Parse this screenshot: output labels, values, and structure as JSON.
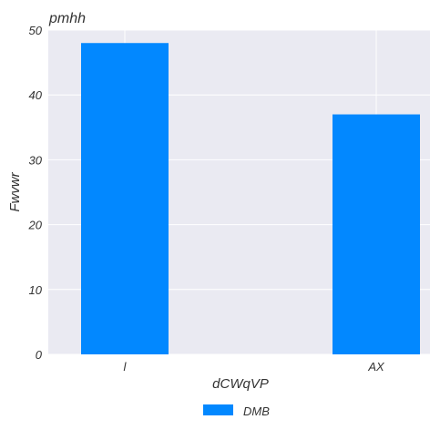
{
  "chart_data": {
    "type": "bar",
    "title": "pmhh",
    "xlabel": "dCWqVP",
    "ylabel": "Fwvwr",
    "categories": [
      "l",
      "AX"
    ],
    "series": [
      {
        "name": "DMB",
        "values": [
          48,
          37
        ],
        "color": "#0288ff"
      }
    ],
    "ylim": [
      0,
      50
    ],
    "yticks": [
      0,
      10,
      20,
      30,
      40,
      50
    ],
    "grid": true,
    "legend_position": "bottom-center",
    "background_color": "#eaeaf2"
  }
}
